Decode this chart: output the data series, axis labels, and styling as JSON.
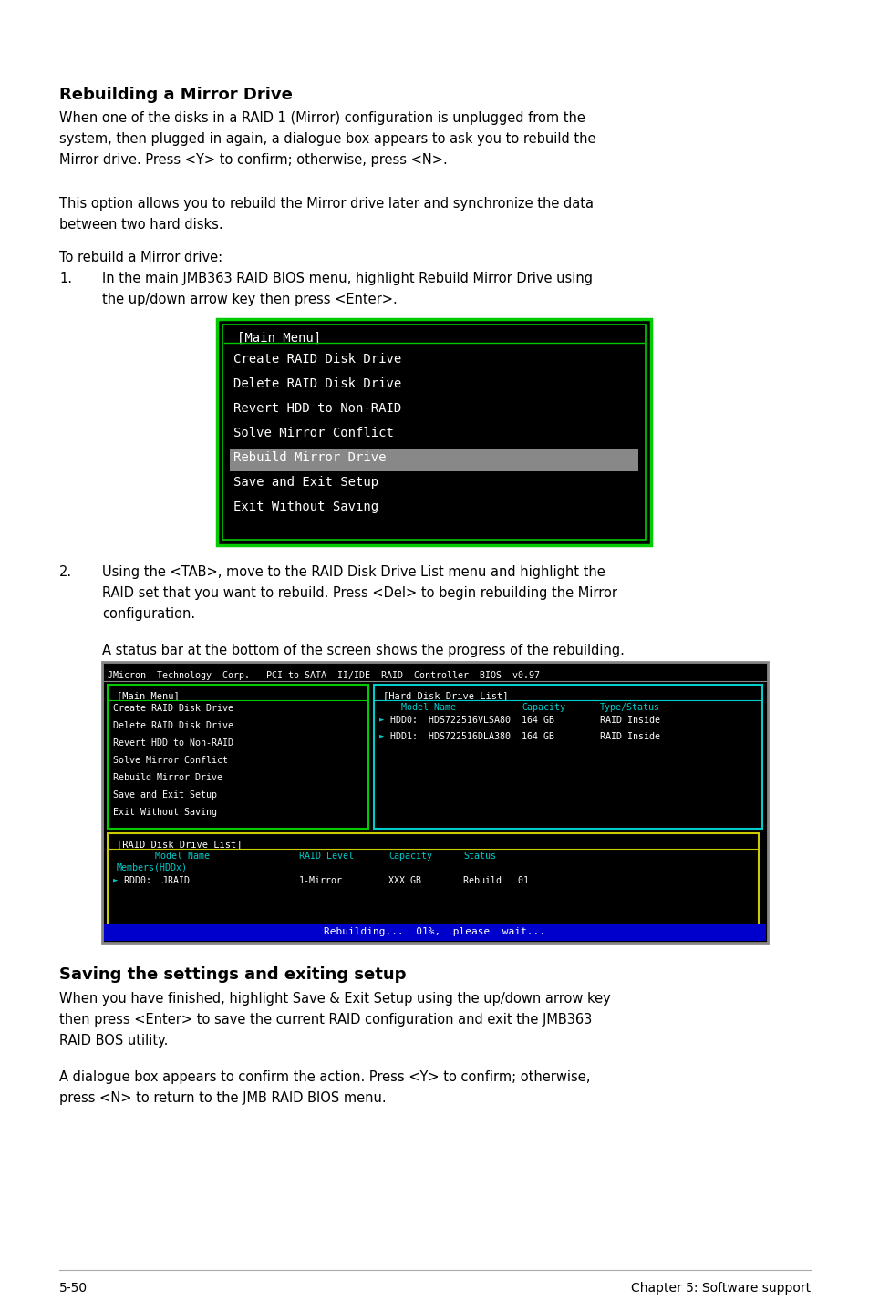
{
  "bg_color": "#ffffff",
  "text_color": "#000000",
  "heading1": "Rebuilding a Mirror Drive",
  "para1": "When one of the disks in a RAID 1 (Mirror) configuration is unplugged from the\nsystem, then plugged in again, a dialogue box appears to ask you to rebuild the\nMirror drive. Press <Y> to confirm; otherwise, press <N>.",
  "para2": "This option allows you to rebuild the Mirror drive later and synchronize the data\nbetween two hard disks.",
  "para3": "To rebuild a Mirror drive:",
  "step1_num": "1.",
  "step1_text": "In the main JMB363 RAID BIOS menu, highlight Rebuild Mirror Drive using\nthe up/down arrow key then press <Enter>.",
  "step2_num": "2.",
  "step2_text": "Using the <TAB>, move to the RAID Disk Drive List menu and highlight the\nRAID set that you want to rebuild. Press <Del> to begin rebuilding the Mirror\nconfiguration.",
  "step2b_text": "A status bar at the bottom of the screen shows the progress of the rebuilding.",
  "heading2": "Saving the settings and exiting setup",
  "para4": "When you have finished, highlight Save & Exit Setup using the up/down arrow key\nthen press <Enter> to save the current RAID configuration and exit the JMB363\nRAID BOS utility.",
  "para5": "A dialogue box appears to confirm the action. Press <Y> to confirm; otherwise,\npress <N> to return to the JMB RAID BIOS menu.",
  "footer_left": "5-50",
  "footer_right": "Chapter 5: Software support",
  "screen1_bg": "#000000",
  "screen1_border": "#00cc00",
  "screen1_title_color": "#ffffff",
  "screen1_menu_items": [
    "Create RAID Disk Drive",
    "Delete RAID Disk Drive",
    "Revert HDD to Non-RAID",
    "Solve Mirror Conflict",
    "Rebuild Mirror Drive",
    "Save and Exit Setup",
    "Exit Without Saving"
  ],
  "screen1_highlight_item": "Rebuild Mirror Drive",
  "screen1_highlight_color": "#888888",
  "screen2_bg": "#000000",
  "screen2_header": "JMicron  Technology  Corp.   PCI-to-SATA  II/IDE  RAID  Controller  BIOS  v0.97",
  "screen2_main_menu_border": "#00cc00",
  "screen2_hdd_border": "#00cccc",
  "screen2_raid_border": "#cccc00",
  "screen2_main_menu_items": [
    "Create RAID Disk Drive",
    "Delete RAID Disk Drive",
    "Revert HDD to Non-RAID",
    "Solve Mirror Conflict",
    "Rebuild Mirror Drive",
    "Save and Exit Setup",
    "Exit Without Saving"
  ],
  "screen2_hdd_title": "[Hard Disk Drive List]",
  "screen2_hdd_cols": [
    "Model Name",
    "Capacity",
    "Type/Status"
  ],
  "screen2_hdd_rows": [
    [
      "HDD0:  HDS722516VLSA80",
      "164 GB",
      "RAID Inside"
    ],
    [
      "HDD1:  HDS722516DLA380",
      "164 GB",
      "RAID Inside"
    ]
  ],
  "screen2_raid_title": "[RAID Disk Drive List]",
  "screen2_raid_rows": [
    [
      "RDD0:  JRAID",
      "1-Mirror",
      "XXX GB",
      "Rebuild   01"
    ]
  ],
  "screen2_status_bar": "Rebuilding...  01%,  please  wait...",
  "screen2_status_bg": "#0000cc",
  "cyan_color": "#00cccc",
  "white_color": "#ffffff",
  "yellow_color": "#cccc00"
}
